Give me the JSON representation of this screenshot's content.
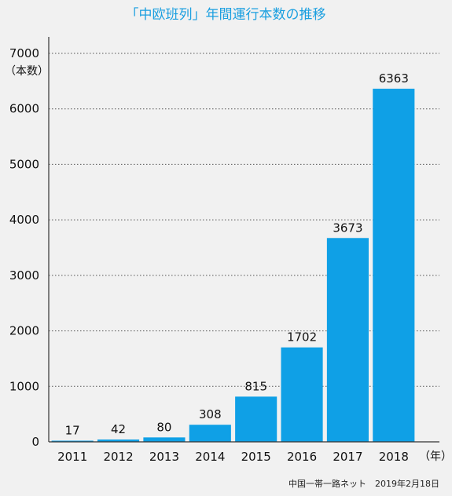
{
  "chart_data": {
    "type": "bar",
    "title": "「中欧班列」年間運行本数の推移",
    "categories": [
      "2011",
      "2012",
      "2013",
      "2014",
      "2015",
      "2016",
      "2017",
      "2018"
    ],
    "values": [
      17,
      42,
      80,
      308,
      815,
      1702,
      3673,
      6363
    ],
    "value_labels": [
      "17",
      "42",
      "80",
      "308",
      "815",
      "1702",
      "3673",
      "6363"
    ],
    "ylim": [
      0,
      7000
    ],
    "yticks": [
      "0",
      "1000",
      "2000",
      "3000",
      "4000",
      "5000",
      "6000",
      "7000"
    ],
    "ytick_values": [
      0,
      1000,
      2000,
      3000,
      4000,
      5000,
      6000,
      7000
    ],
    "ylabel": "（本数）",
    "xlabel": "（年）",
    "grid": true,
    "bar_color": "#0fa0e6",
    "source": "中国一帯一路ネット　2019年2月18日"
  }
}
